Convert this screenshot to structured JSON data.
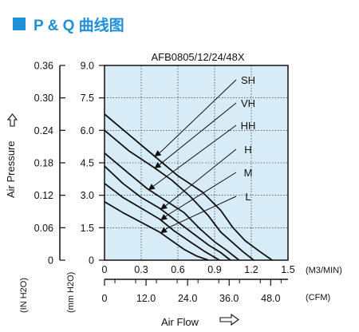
{
  "header": {
    "marker_color": "#1e8fd8",
    "title": "P & Q 曲线图"
  },
  "chart_data": {
    "type": "line",
    "title": "AFB0805/12/24/48X",
    "plot_bg": "#d8ecf8",
    "grid": true,
    "x_primary": {
      "unit": "(M3/MIN)",
      "range": [
        0,
        1.5
      ],
      "ticks": [
        "0",
        "0.3",
        "0.6",
        "0.9",
        "1.2",
        "1.5"
      ]
    },
    "x_secondary": {
      "unit": "(CFM)",
      "range": [
        0,
        53
      ],
      "ticks": [
        "0",
        "12.0",
        "24.0",
        "36.0",
        "48.0"
      ]
    },
    "y_primary": {
      "unit": "(mm H2O)",
      "range": [
        0,
        9.0
      ],
      "ticks": [
        "0",
        "1.5",
        "3.0",
        "4.5",
        "6.0",
        "7.5",
        "9.0"
      ]
    },
    "y_secondary": {
      "unit": "(IN H2O)",
      "range": [
        0,
        0.36
      ],
      "ticks": [
        "0",
        "0.06",
        "0.12",
        "0.18",
        "0.24",
        "0.30",
        "0.36"
      ]
    },
    "xlabel": "Air Flow",
    "ylabel": "Air Pressure",
    "series": [
      {
        "name": "SH",
        "points": [
          [
            0,
            6.75
          ],
          [
            0.2,
            5.8
          ],
          [
            0.4,
            4.85
          ],
          [
            0.6,
            3.9
          ],
          [
            0.8,
            3.15
          ],
          [
            0.95,
            2.3
          ],
          [
            1.05,
            1.5
          ],
          [
            1.15,
            0.9
          ],
          [
            1.27,
            0.4
          ],
          [
            1.37,
            0
          ]
        ]
      },
      {
        "name": "VH",
        "points": [
          [
            0,
            6.0
          ],
          [
            0.2,
            5.05
          ],
          [
            0.4,
            4.3
          ],
          [
            0.55,
            3.7
          ],
          [
            0.7,
            2.95
          ],
          [
            0.85,
            2.05
          ],
          [
            0.95,
            1.3
          ],
          [
            1.05,
            0.8
          ],
          [
            1.13,
            0.4
          ],
          [
            1.22,
            0
          ]
        ]
      },
      {
        "name": "HH",
        "points": [
          [
            0,
            4.95
          ],
          [
            0.2,
            4.0
          ],
          [
            0.35,
            3.3
          ],
          [
            0.5,
            2.75
          ],
          [
            0.65,
            2.2
          ],
          [
            0.78,
            1.45
          ],
          [
            0.9,
            0.85
          ],
          [
            1.0,
            0.45
          ],
          [
            1.1,
            0
          ]
        ]
      },
      {
        "name": "H",
        "points": [
          [
            0,
            4.35
          ],
          [
            0.15,
            3.55
          ],
          [
            0.3,
            2.9
          ],
          [
            0.45,
            2.4
          ],
          [
            0.58,
            1.85
          ],
          [
            0.72,
            1.25
          ],
          [
            0.85,
            0.7
          ],
          [
            0.95,
            0.35
          ],
          [
            1.03,
            0
          ]
        ]
      },
      {
        "name": "M",
        "points": [
          [
            0,
            3.55
          ],
          [
            0.15,
            2.9
          ],
          [
            0.3,
            2.4
          ],
          [
            0.45,
            1.9
          ],
          [
            0.57,
            1.35
          ],
          [
            0.7,
            0.85
          ],
          [
            0.82,
            0.4
          ],
          [
            0.94,
            0
          ]
        ]
      },
      {
        "name": "L",
        "points": [
          [
            0,
            2.7
          ],
          [
            0.15,
            2.2
          ],
          [
            0.3,
            1.75
          ],
          [
            0.45,
            1.3
          ],
          [
            0.55,
            0.9
          ],
          [
            0.65,
            0.5
          ],
          [
            0.75,
            0.2
          ],
          [
            0.85,
            0
          ]
        ]
      }
    ]
  }
}
